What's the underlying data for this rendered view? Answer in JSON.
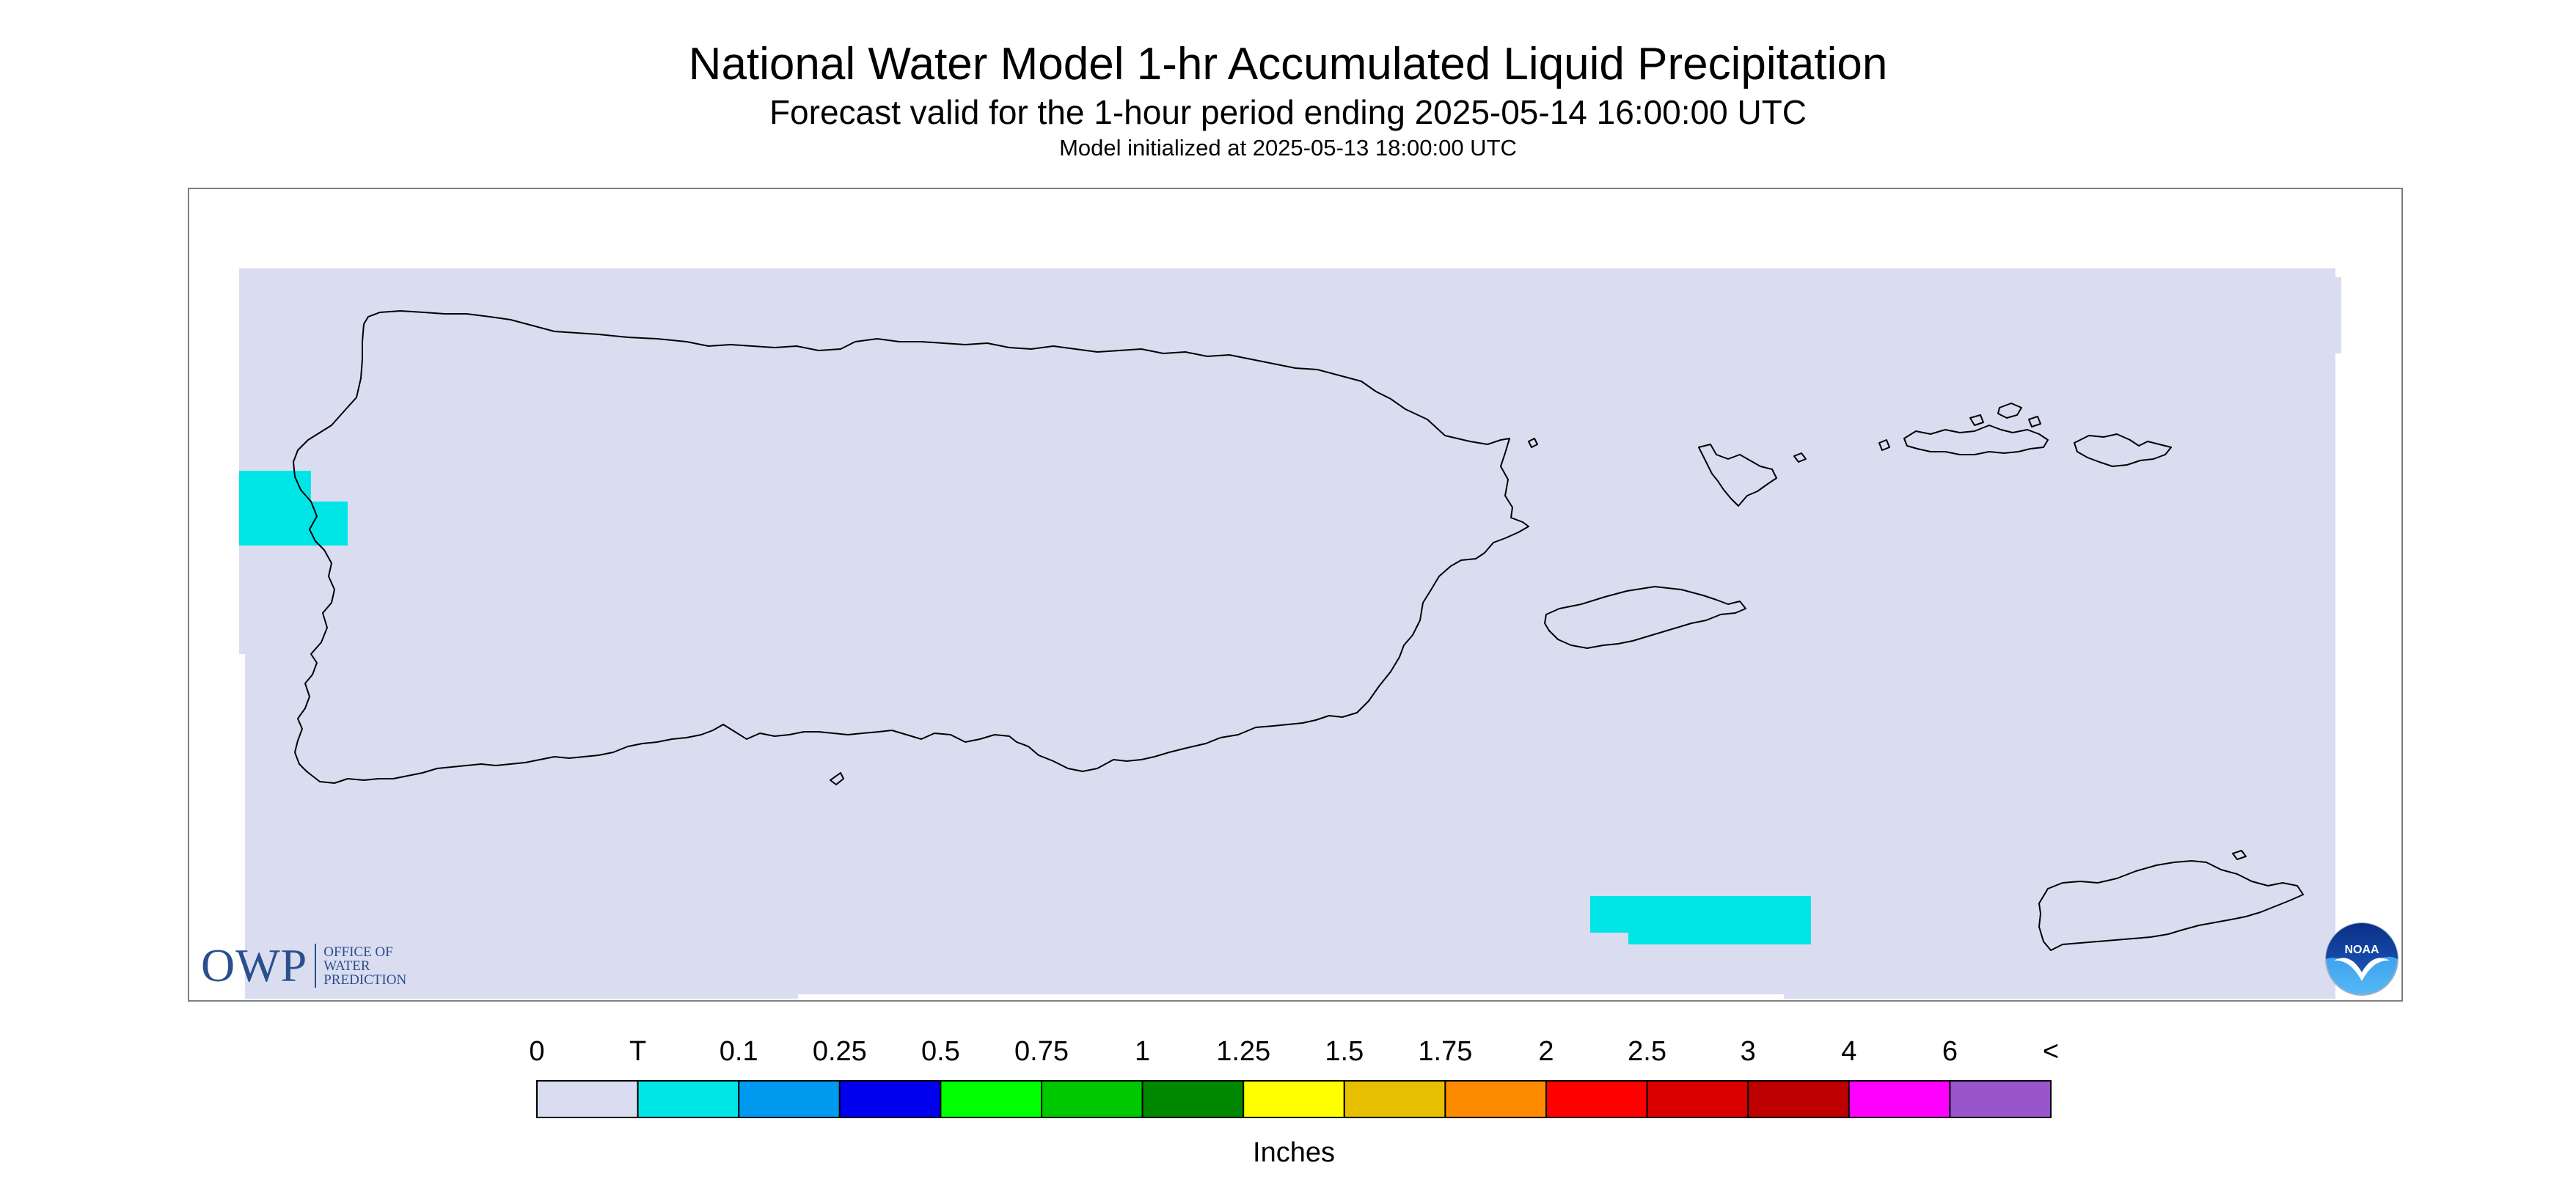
{
  "title": "National Water Model 1-hr Accumulated Liquid Precipitation",
  "subtitle": "Forecast valid for the 1-hour period ending 2025-05-14 16:00:00 UTC",
  "init_line": "Model initialized at 2025-05-13 18:00:00 UTC",
  "colors": {
    "zero_fill": "#dadcf0",
    "trace_fill": "#00e6e6",
    "coastline": "#000000",
    "frame": "#7f7f7f"
  },
  "logos": {
    "owp_mark": "OWP",
    "owp_text": [
      "OFFICE OF",
      "WATER",
      "PREDICTION"
    ],
    "noaa_text": "NOAA"
  },
  "legend": {
    "label": "Inches",
    "ticks": [
      "0",
      "T",
      "0.1",
      "0.25",
      "0.5",
      "0.75",
      "1",
      "1.25",
      "1.5",
      "1.75",
      "2",
      "2.5",
      "3",
      "4",
      "6",
      "<"
    ],
    "colors": [
      "#dadcf0",
      "#00e6e6",
      "#0099f0",
      "#0000ee",
      "#00ff00",
      "#00c800",
      "#008800",
      "#ffff00",
      "#e6c000",
      "#ff8c00",
      "#ff0000",
      "#d90000",
      "#bf0000",
      "#ff00ff",
      "#9955cc"
    ]
  }
}
